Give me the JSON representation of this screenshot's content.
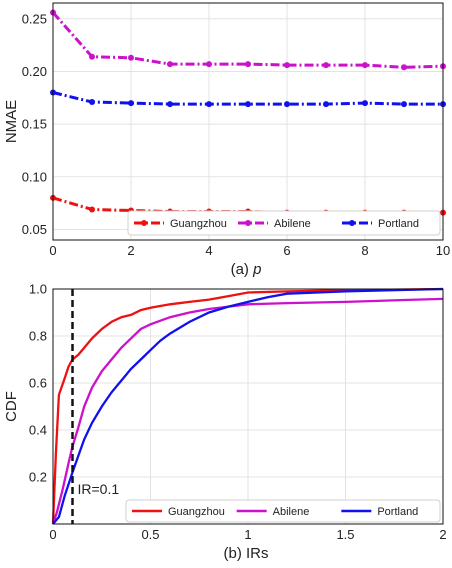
{
  "chart_data": [
    {
      "type": "line",
      "xlabel": "(a) p",
      "xlabel_prefix": "(a) ",
      "xlabel_var": "p",
      "ylabel": "NMAE",
      "xlim": [
        0,
        10
      ],
      "ylim": [
        0.04,
        0.265
      ],
      "xticks": [
        0,
        2,
        4,
        6,
        8,
        10
      ],
      "xtick_labels": [
        "0",
        "2",
        "4",
        "6",
        "8",
        "10"
      ],
      "yticks": [
        0.05,
        0.1,
        0.15,
        0.2,
        0.25
      ],
      "ytick_labels": [
        "0.05",
        "0.10",
        "0.15",
        "0.20",
        "0.25"
      ],
      "grid": true,
      "legend_position": "bottom",
      "x": [
        0,
        1,
        2,
        3,
        4,
        5,
        6,
        7,
        8,
        9,
        10
      ],
      "series": [
        {
          "name": "Guangzhou",
          "color": "#ee1111",
          "style": "dash-dot",
          "marker": "circle",
          "values": [
            0.08,
            0.069,
            0.068,
            0.067,
            0.067,
            0.067,
            0.066,
            0.066,
            0.066,
            0.066,
            0.066
          ]
        },
        {
          "name": "Abilene",
          "color": "#cc11cc",
          "style": "dash-dot",
          "marker": "circle",
          "values": [
            0.256,
            0.214,
            0.213,
            0.207,
            0.207,
            0.207,
            0.206,
            0.206,
            0.206,
            0.204,
            0.205
          ]
        },
        {
          "name": "Portland",
          "color": "#1111ee",
          "style": "dash-dot",
          "marker": "circle",
          "values": [
            0.18,
            0.171,
            0.17,
            0.169,
            0.169,
            0.169,
            0.169,
            0.169,
            0.17,
            0.169,
            0.169
          ]
        }
      ]
    },
    {
      "type": "line",
      "xlabel": "(b) IRs",
      "ylabel": "CDF",
      "xlim": [
        0,
        2
      ],
      "ylim": [
        0,
        1.0
      ],
      "xticks": [
        0,
        0.5,
        1,
        1.5,
        2
      ],
      "xtick_labels": [
        "0",
        "0.5",
        "1",
        "1.5",
        "2"
      ],
      "yticks": [
        0.2,
        0.4,
        0.6,
        0.8,
        1.0
      ],
      "ytick_labels": [
        "0.2",
        "0.4",
        "0.6",
        "0.8",
        "1.0"
      ],
      "grid": true,
      "legend_position": "bottom-right",
      "annotation": {
        "text": "IR=0.1",
        "x": 0.1
      },
      "series": [
        {
          "name": "Guangzhou",
          "color": "#ee1111",
          "style": "solid",
          "x": [
            0,
            0.015,
            0.03,
            0.06,
            0.08,
            0.1,
            0.13,
            0.16,
            0.2,
            0.25,
            0.3,
            0.35,
            0.4,
            0.45,
            0.5,
            0.6,
            0.7,
            0.8,
            0.9,
            1.0,
            1.2,
            1.5,
            2.0
          ],
          "y": [
            0,
            0.3,
            0.55,
            0.62,
            0.67,
            0.7,
            0.72,
            0.75,
            0.79,
            0.83,
            0.86,
            0.88,
            0.89,
            0.91,
            0.92,
            0.935,
            0.945,
            0.955,
            0.97,
            0.985,
            0.99,
            0.995,
            1.0
          ]
        },
        {
          "name": "Abilene",
          "color": "#cc11cc",
          "style": "solid",
          "x": [
            0,
            0.02,
            0.05,
            0.08,
            0.1,
            0.13,
            0.16,
            0.2,
            0.25,
            0.3,
            0.35,
            0.4,
            0.45,
            0.5,
            0.6,
            0.7,
            0.8,
            0.9,
            1.0,
            1.2,
            1.5,
            1.8,
            2.0
          ],
          "y": [
            0,
            0.05,
            0.15,
            0.26,
            0.33,
            0.41,
            0.5,
            0.58,
            0.65,
            0.7,
            0.75,
            0.79,
            0.83,
            0.85,
            0.88,
            0.9,
            0.915,
            0.925,
            0.935,
            0.94,
            0.945,
            0.953,
            0.958
          ]
        },
        {
          "name": "Portland",
          "color": "#1111ee",
          "style": "solid",
          "x": [
            0,
            0.03,
            0.06,
            0.1,
            0.13,
            0.16,
            0.2,
            0.25,
            0.3,
            0.35,
            0.4,
            0.45,
            0.5,
            0.55,
            0.6,
            0.7,
            0.8,
            0.9,
            1.0,
            1.1,
            1.2,
            1.5,
            2.0
          ],
          "y": [
            0,
            0.03,
            0.12,
            0.22,
            0.29,
            0.36,
            0.43,
            0.5,
            0.56,
            0.61,
            0.66,
            0.7,
            0.74,
            0.78,
            0.81,
            0.86,
            0.9,
            0.925,
            0.945,
            0.965,
            0.98,
            0.99,
            1.0
          ]
        }
      ]
    }
  ]
}
